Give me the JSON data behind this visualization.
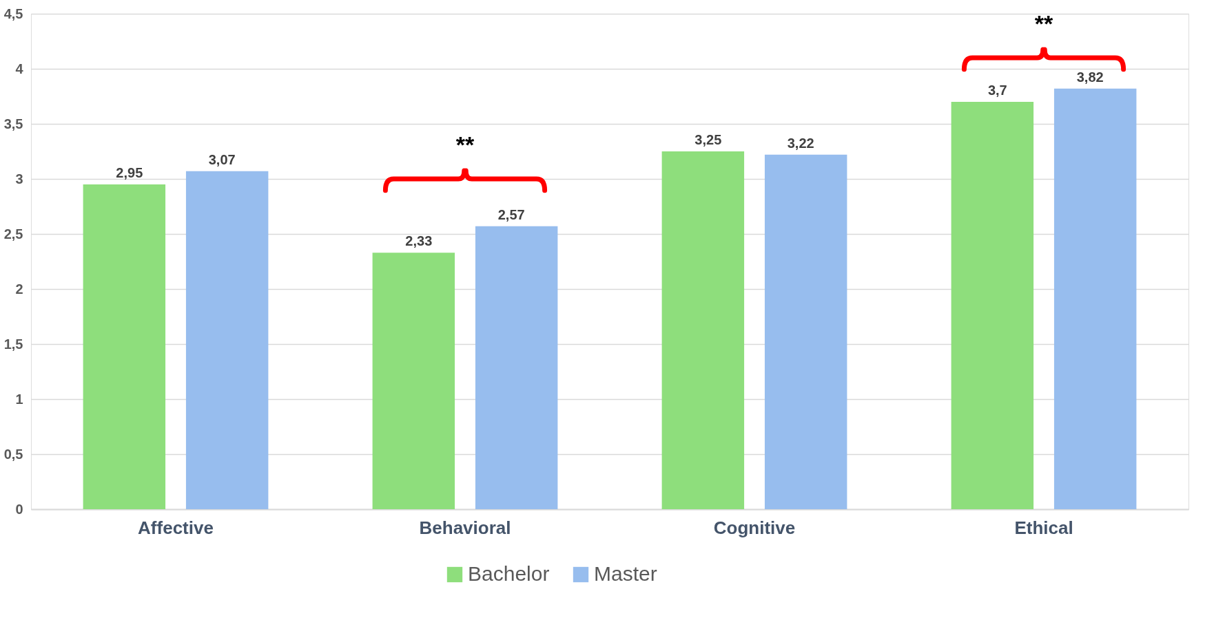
{
  "chart_data": {
    "type": "bar",
    "categories": [
      "Affective",
      "Behavioral",
      "Cognitive",
      "Ethical"
    ],
    "series": [
      {
        "name": "Bachelor",
        "color": "#8ede7c",
        "values": [
          2.95,
          2.33,
          3.25,
          3.7
        ],
        "value_labels": [
          "2,95",
          "2,33",
          "3,25",
          "3,7"
        ]
      },
      {
        "name": "Master",
        "color": "#97bdee",
        "values": [
          3.07,
          2.57,
          3.22,
          3.82
        ],
        "value_labels": [
          "3,07",
          "2,57",
          "3,22",
          "3,82"
        ]
      }
    ],
    "ylim": [
      0,
      4.5
    ],
    "yticks": [
      0,
      {
        "value": 0.5,
        "label": "0,5"
      },
      1,
      {
        "value": 1.5,
        "label": "1,5"
      },
      2,
      {
        "value": 2.5,
        "label": "2,5"
      },
      3,
      {
        "value": 3.5,
        "label": "3,5"
      },
      4,
      {
        "value": 4.5,
        "label": "4,5"
      }
    ],
    "grid": "y",
    "legend": "bottom",
    "annotations": [
      "**",
      "**"
    ]
  }
}
